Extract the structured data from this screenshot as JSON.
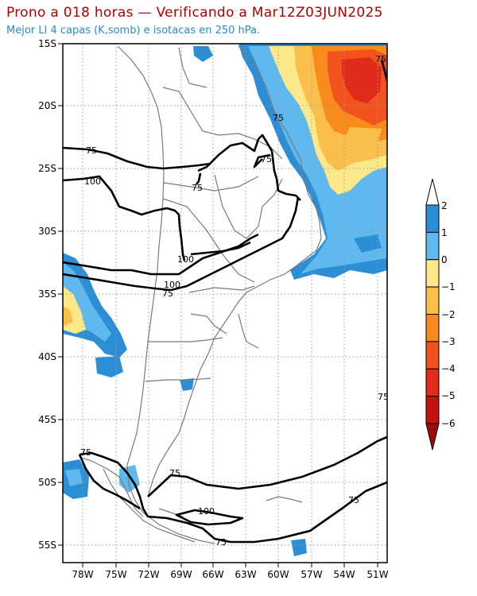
{
  "header": {
    "title": "Prono a 018 horas — Verificando a Mar12Z03JUN2025",
    "subtitle": "Mejor LI 4 capas (K,somb) e isotacas en 250 hPa."
  },
  "axes": {
    "lat_labels": [
      "15S",
      "20S",
      "25S",
      "30S",
      "35S",
      "40S",
      "45S",
      "50S",
      "55S"
    ],
    "lon_labels": [
      "78W",
      "75W",
      "72W",
      "69W",
      "66W",
      "63W",
      "60W",
      "57W",
      "54W",
      "51W"
    ]
  },
  "contours": {
    "labels": [
      "75",
      "75",
      "75",
      "100",
      "75",
      "100",
      "100",
      "75",
      "75",
      "75",
      "100",
      "75",
      "75",
      "75",
      "75"
    ]
  },
  "colorbar": {
    "ticks": [
      "2",
      "1",
      "0",
      "−1",
      "−2",
      "−3",
      "−4",
      "−5",
      "−6"
    ],
    "colors": [
      "#2c8fd6",
      "#5fb8ee",
      "#fde98a",
      "#fbc04b",
      "#f98a1c",
      "#f2531c",
      "#e02a1a",
      "#c3120f",
      "#9e0a0a"
    ]
  }
}
